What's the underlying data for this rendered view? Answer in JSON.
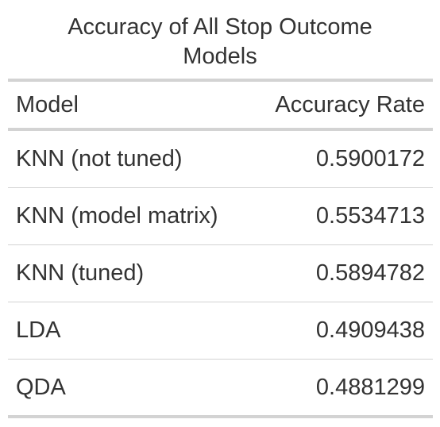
{
  "chart_data": {
    "type": "table",
    "title": "Accuracy of All Stop Outcome Models",
    "title_lines": [
      "Accuracy of All Stop Outcome",
      "Models"
    ],
    "columns": [
      "Model",
      "Accuracy Rate"
    ],
    "rows": [
      {
        "model": "KNN (not tuned)",
        "accuracy": "0.5900172"
      },
      {
        "model": "KNN (model matrix)",
        "accuracy": "0.5534713"
      },
      {
        "model": "KNN (tuned)",
        "accuracy": "0.5894782"
      },
      {
        "model": "LDA",
        "accuracy": "0.4909438"
      },
      {
        "model": "QDA",
        "accuracy": "0.4881299"
      }
    ]
  }
}
